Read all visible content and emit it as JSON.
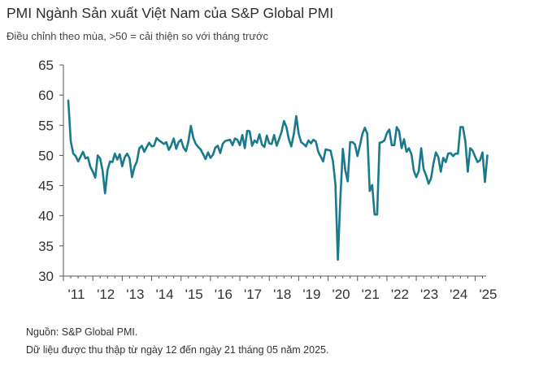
{
  "header": {
    "title": "PMI Ngành Sản xuất Việt Nam của S&P Global PMI",
    "subtitle": "Điều chỉnh theo mùa, >50 = cải thiện so với tháng trước"
  },
  "footer": {
    "source": "Nguồn: S&P Global PMI.",
    "collection": "Dữ liệu được thu thập từ ngày 12 đến ngày 21 tháng 05 năm 2025."
  },
  "colors": {
    "line": "#1a7a8c",
    "axis": "#555555",
    "text": "#333333"
  },
  "chart_data": {
    "type": "line",
    "title": "PMI Ngành Sản xuất Việt Nam của S&P Global PMI",
    "subtitle": "Điều chỉnh theo mùa, >50 = cải thiện so với tháng trước",
    "ylim": [
      30,
      65
    ],
    "yticks": [
      65,
      60,
      55,
      50,
      45,
      40,
      35,
      30
    ],
    "xticks": [
      "'11",
      "'12",
      "'13",
      "'14",
      "'15",
      "'16",
      "'17",
      "'18",
      "'19",
      "'20",
      "'21",
      "'22",
      "'23",
      "'24",
      "'25"
    ],
    "grid": false,
    "start": "2011-03",
    "end": "2025-05",
    "frequency": "monthly",
    "series": [
      {
        "color": "#1a7a8c",
        "values": [
          59.1,
          52.4,
          50.3,
          49.9,
          49.0,
          49.8,
          50.6,
          49.5,
          49.7,
          48.1,
          47.3,
          46.3,
          50.0,
          49.5,
          47.5,
          43.7,
          47.6,
          49.0,
          48.9,
          50.3,
          49.3,
          50.2,
          48.2,
          49.7,
          50.3,
          49.5,
          46.4,
          48.1,
          49.0,
          51.2,
          51.6,
          50.6,
          51.4,
          52.1,
          51.5,
          51.6,
          52.9,
          52.5,
          52.2,
          51.9,
          52.2,
          50.9,
          51.7,
          52.8,
          51.1,
          52.2,
          52.6,
          51.3,
          50.7,
          52.3,
          54.9,
          52.9,
          51.9,
          51.4,
          51.0,
          50.2,
          49.4,
          50.5,
          49.6,
          50.1,
          51.3,
          51.6,
          50.4,
          51.9,
          52.4,
          52.5,
          52.6,
          51.7,
          52.8,
          52.6,
          51.7,
          53.4,
          51.2,
          54.1,
          54.0,
          51.6,
          52.5,
          52.1,
          53.5,
          51.8,
          51.4,
          53.3,
          52.0,
          51.9,
          53.4,
          51.6,
          52.7,
          53.9,
          55.7,
          54.7,
          52.7,
          51.5,
          53.5,
          56.5,
          53.6,
          52.2,
          51.9,
          51.5,
          52.5,
          52.0,
          52.6,
          52.3,
          50.6,
          49.8,
          49.0,
          51.0,
          50.9,
          50.8,
          49.0,
          45.2,
          32.7,
          42.7,
          51.1,
          47.6,
          45.7,
          52.2,
          52.2,
          51.8,
          49.9,
          51.7,
          53.6,
          54.6,
          53.6,
          44.1,
          45.1,
          40.2,
          40.2,
          52.1,
          52.2,
          52.5,
          53.7,
          54.3,
          51.7,
          51.7,
          54.7,
          54.0,
          51.2,
          52.7,
          50.6,
          51.2,
          50.2,
          47.4,
          46.4,
          47.4,
          51.2,
          47.7,
          46.7,
          45.3,
          46.2,
          48.7,
          50.5,
          49.7,
          47.3,
          49.6,
          48.9,
          50.3,
          50.4,
          49.9,
          50.3,
          50.3,
          54.7,
          54.7,
          52.4,
          47.3,
          51.2,
          50.8,
          49.8,
          48.9,
          49.2,
          50.5,
          45.6,
          50.0
        ]
      }
    ]
  }
}
